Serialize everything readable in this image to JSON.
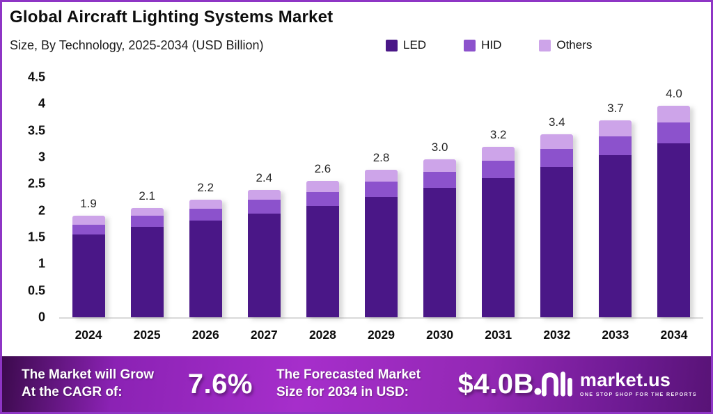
{
  "header": {
    "title": "Global Aircraft Lighting Systems Market",
    "subtitle": "Size, By Technology, 2025-2034 (USD Billion)"
  },
  "legend": [
    {
      "label": "LED",
      "color": "#4a1787"
    },
    {
      "label": "HID",
      "color": "#8c52cc"
    },
    {
      "label": "Others",
      "color": "#cda4e9"
    }
  ],
  "chart_data": {
    "type": "bar",
    "stacked": true,
    "title": "Global Aircraft Lighting Systems Market",
    "subtitle": "Size, By Technology, 2025-2034 (USD Billion)",
    "xlabel": "",
    "ylabel": "",
    "ylim": [
      0,
      4.5
    ],
    "yticks": [
      0,
      0.5,
      1,
      1.5,
      2,
      2.5,
      3,
      3.5,
      4,
      4.5
    ],
    "grid": false,
    "legend_position": "top-right",
    "categories": [
      "2024",
      "2025",
      "2026",
      "2027",
      "2028",
      "2029",
      "2030",
      "2031",
      "2032",
      "2033",
      "2034"
    ],
    "series": [
      {
        "name": "LED",
        "color": "#4a1787",
        "values": [
          1.55,
          1.69,
          1.81,
          1.95,
          2.09,
          2.25,
          2.43,
          2.61,
          2.82,
          3.04,
          3.26
        ]
      },
      {
        "name": "HID",
        "color": "#8c52cc",
        "values": [
          0.19,
          0.21,
          0.22,
          0.25,
          0.26,
          0.29,
          0.29,
          0.33,
          0.34,
          0.35,
          0.39
        ]
      },
      {
        "name": "Others",
        "color": "#cda4e9",
        "values": [
          0.16,
          0.15,
          0.17,
          0.19,
          0.21,
          0.23,
          0.24,
          0.25,
          0.27,
          0.3,
          0.32
        ]
      }
    ],
    "total_labels": [
      "1.9",
      "2.1",
      "2.2",
      "2.4",
      "2.6",
      "2.8",
      "3.0",
      "3.2",
      "3.4",
      "3.7",
      "4.0"
    ]
  },
  "banner": {
    "cagr_label_line1": "The Market will Grow",
    "cagr_label_line2": "At the CAGR of:",
    "cagr_value": "7.6%",
    "forecast_label_line1": "The Forecasted Market",
    "forecast_label_line2": "Size for 2034 in USD:",
    "forecast_value": "$4.0B",
    "brand_name": "market.us",
    "brand_tagline": "ONE STOP SHOP FOR THE REPORTS"
  },
  "colors": {
    "page_border": "#8e35c5",
    "led": "#4a1787",
    "hid": "#8c52cc",
    "others": "#cda4e9",
    "axis_line": "#d9d9d9",
    "banner_gradient_start": "#3c0a4d",
    "banner_gradient_mid": "#a62ecb",
    "banner_gradient_end": "#581376"
  }
}
